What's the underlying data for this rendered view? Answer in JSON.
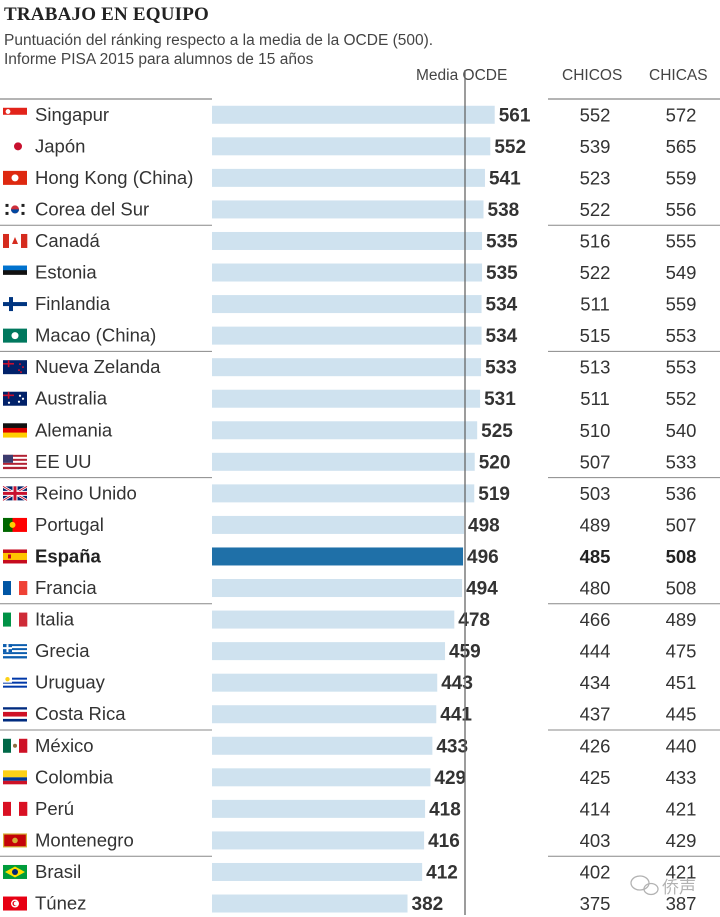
{
  "title": "TRABAJO EN EQUIPO",
  "subtitle": [
    "Puntuación del ránking respecto a la media de la OCDE (500).",
    "Informe PISA 2015 para alumnos de 15  años"
  ],
  "columns": {
    "media": "Media OCDE",
    "boys": "CHICOS",
    "girls": "CHICAS"
  },
  "colors": {
    "bar": "#cfe2ef",
    "highlight": "#1f70a8",
    "line": "#888888",
    "text": "#333333"
  },
  "watermark": "侨声",
  "chart_data": {
    "type": "bar",
    "orientation": "horizontal",
    "reference_line": {
      "label": "Media OCDE",
      "value": 500
    },
    "highlight": "España",
    "categories": [
      "Singapur",
      "Japón",
      "Hong Kong (China)",
      "Corea del Sur",
      "Canadá",
      "Estonia",
      "Finlandia",
      "Macao (China)",
      "Nueva Zelanda",
      "Australia",
      "Alemania",
      "EE UU",
      "Reino Unido",
      "Portugal",
      "España",
      "Francia",
      "Italia",
      "Grecia",
      "Uruguay",
      "Costa Rica",
      "México",
      "Colombia",
      "Perú",
      "Montenegro",
      "Brasil",
      "Túnez"
    ],
    "flags": [
      "flag-singapore",
      "flag-japan",
      "flag-hong-kong",
      "flag-south-korea",
      "flag-canada",
      "flag-estonia",
      "flag-finland",
      "flag-macao",
      "flag-new-zealand",
      "flag-australia",
      "flag-germany",
      "flag-usa",
      "flag-uk",
      "flag-portugal",
      "flag-spain",
      "flag-france",
      "flag-italy",
      "flag-greece",
      "flag-uruguay",
      "flag-costa-rica",
      "flag-mexico",
      "flag-colombia",
      "flag-peru",
      "flag-montenegro",
      "flag-brazil",
      "flag-tunisia"
    ],
    "series": [
      {
        "name": "Media",
        "values": [
          561,
          552,
          541,
          538,
          535,
          535,
          534,
          534,
          533,
          531,
          525,
          520,
          519,
          498,
          496,
          494,
          478,
          459,
          443,
          441,
          433,
          429,
          418,
          416,
          412,
          382
        ]
      },
      {
        "name": "CHICOS",
        "values": [
          552,
          539,
          523,
          522,
          516,
          522,
          511,
          515,
          513,
          511,
          510,
          507,
          503,
          489,
          485,
          480,
          466,
          444,
          434,
          437,
          426,
          425,
          414,
          403,
          402,
          375
        ]
      },
      {
        "name": "CHICAS",
        "values": [
          572,
          565,
          559,
          556,
          555,
          549,
          559,
          553,
          553,
          552,
          540,
          533,
          536,
          507,
          508,
          508,
          489,
          475,
          451,
          445,
          440,
          433,
          421,
          429,
          421,
          387
        ]
      }
    ]
  }
}
